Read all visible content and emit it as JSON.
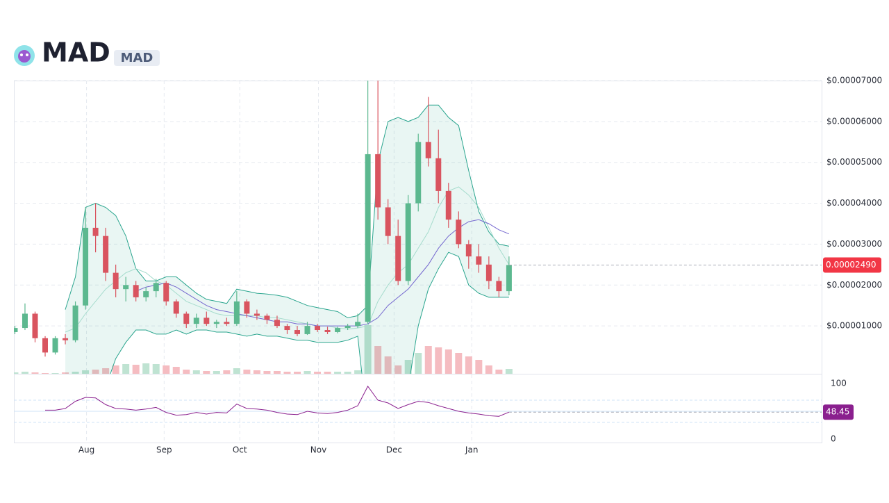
{
  "header": {
    "title": "MAD",
    "symbol": "MAD"
  },
  "chart_data": {
    "type": "candlestick",
    "xlim": [
      -0.1,
      80
    ],
    "xticks": [
      {
        "value": 7.1,
        "label": "Aug"
      },
      {
        "value": 14.8,
        "label": "Sep"
      },
      {
        "value": 22.3,
        "label": "Oct"
      },
      {
        "value": 30.1,
        "label": "Nov"
      },
      {
        "value": 37.6,
        "label": "Dec"
      },
      {
        "value": 45.3,
        "label": "Jan"
      }
    ],
    "ylim": [
      -1.7e-06,
      7e-05
    ],
    "yticks": [
      {
        "value": 1e-05,
        "label": "$0.00001000"
      },
      {
        "value": 2e-05,
        "label": "$0.00002000"
      },
      {
        "value": 3e-05,
        "label": "$0.00003000"
      },
      {
        "value": 4e-05,
        "label": "$0.00004000"
      },
      {
        "value": 5e-05,
        "label": "$0.00005000"
      },
      {
        "value": 6e-05,
        "label": "$0.00006000"
      },
      {
        "value": 7e-05,
        "label": "$0.00007000"
      }
    ],
    "grid": true,
    "open": [
      8.5e-06,
      9.5e-06,
      1.3e-05,
      7e-06,
      3.5e-06,
      7e-06,
      6.5e-06,
      1.5e-05,
      3.4e-05,
      3.2e-05,
      2.3e-05,
      1.9e-05,
      2e-05,
      1.7e-05,
      1.85e-05,
      2.05e-05,
      1.6e-05,
      1.3e-05,
      1.05e-05,
      1.2e-05,
      1.05e-05,
      1.1e-05,
      1.05e-05,
      1.6e-05,
      1.3e-05,
      1.25e-05,
      1.15e-05,
      1e-05,
      9e-06,
      8e-06,
      1e-05,
      9e-06,
      8.5e-06,
      9.5e-06,
      1e-05,
      1.1e-05,
      5.2e-05,
      3.9e-05,
      3.2e-05,
      2.1e-05,
      4e-05,
      5.5e-05,
      5.1e-05,
      4.3e-05,
      3.6e-05,
      3e-05,
      2.7e-05,
      2.5e-05,
      2.1e-05,
      1.85e-05
    ],
    "high": [
      1e-05,
      1.55e-05,
      1.35e-05,
      7.5e-06,
      7.5e-06,
      8e-06,
      1.6e-05,
      3.9e-05,
      4e-05,
      3.4e-05,
      2.5e-05,
      2.2e-05,
      2.1e-05,
      1.95e-05,
      2.15e-05,
      2.1e-05,
      1.65e-05,
      1.35e-05,
      1.3e-05,
      1.35e-05,
      1.15e-05,
      1.2e-05,
      1.85e-05,
      1.65e-05,
      1.4e-05,
      1.3e-05,
      1.25e-05,
      1.05e-05,
      1e-05,
      1.1e-05,
      1.05e-05,
      9.8e-06,
      9.8e-06,
      1.05e-05,
      1.3e-05,
      7e-05,
      7e-05,
      4.1e-05,
      3.6e-05,
      4.2e-05,
      5.7e-05,
      6.6e-05,
      5.8e-05,
      4.5e-05,
      3.8e-05,
      3.1e-05,
      3e-05,
      2.7e-05,
      2.2e-05,
      2.7e-05
    ],
    "low": [
      8e-06,
      9e-06,
      6e-06,
      2.5e-06,
      3e-06,
      5.5e-06,
      6e-06,
      1.4e-05,
      2.8e-05,
      2.1e-05,
      1.7e-05,
      1.6e-05,
      1.6e-05,
      1.6e-05,
      1.7e-05,
      1.5e-05,
      1.2e-05,
      9.5e-06,
      9.5e-06,
      1e-05,
      9.5e-06,
      1e-05,
      1e-05,
      1.2e-05,
      1.15e-05,
      1.05e-05,
      9.5e-06,
      8e-06,
      7.5e-06,
      7.8e-06,
      8.5e-06,
      8e-06,
      8.2e-06,
      9e-06,
      9.5e-06,
      1.05e-05,
      3.6e-05,
      3e-05,
      2e-05,
      2e-05,
      3.8e-05,
      4.9e-05,
      4e-05,
      3.4e-05,
      2.9e-05,
      2.4e-05,
      2.3e-05,
      1.9e-05,
      1.7e-05,
      1.75e-05
    ],
    "close": [
      9.5e-06,
      1.3e-05,
      7e-06,
      3.5e-06,
      7e-06,
      6.5e-06,
      1.5e-05,
      3.4e-05,
      3.2e-05,
      2.3e-05,
      1.9e-05,
      2e-05,
      1.7e-05,
      1.85e-05,
      2.05e-05,
      1.6e-05,
      1.3e-05,
      1.05e-05,
      1.2e-05,
      1.05e-05,
      1.1e-05,
      1.05e-05,
      1.6e-05,
      1.3e-05,
      1.25e-05,
      1.15e-05,
      1e-05,
      9e-06,
      8e-06,
      1e-05,
      9e-06,
      8.5e-06,
      9.5e-06,
      1e-05,
      1.1e-05,
      5.2e-05,
      3.9e-05,
      3.2e-05,
      2.1e-05,
      4e-05,
      5.5e-05,
      5.1e-05,
      4.3e-05,
      3.6e-05,
      3e-05,
      2.7e-05,
      2.5e-05,
      2.1e-05,
      1.85e-05,
      2.49e-05
    ],
    "volume": [
      2,
      3,
      2,
      1,
      1,
      2,
      3,
      5,
      6,
      8,
      12,
      14,
      13,
      15,
      14,
      12,
      10,
      6,
      5,
      4,
      4,
      5,
      8,
      6,
      5,
      4,
      4,
      3,
      3,
      4,
      3,
      3,
      3,
      3,
      5,
      70,
      40,
      25,
      12,
      20,
      30,
      40,
      38,
      35,
      30,
      25,
      20,
      12,
      6,
      7
    ],
    "volume_lim": [
      0,
      100
    ],
    "bb_upper": [
      null,
      null,
      null,
      null,
      null,
      1.4e-05,
      2.2e-05,
      3.9e-05,
      4e-05,
      3.9e-05,
      3.7e-05,
      3.2e-05,
      2.4e-05,
      2.1e-05,
      2.1e-05,
      2.2e-05,
      2.2e-05,
      2e-05,
      1.8e-05,
      1.65e-05,
      1.6e-05,
      1.55e-05,
      1.9e-05,
      1.85e-05,
      1.8e-05,
      1.78e-05,
      1.75e-05,
      1.7e-05,
      1.6e-05,
      1.5e-05,
      1.45e-05,
      1.4e-05,
      1.35e-05,
      1.2e-05,
      1.25e-05,
      1.5e-05,
      5e-05,
      6e-05,
      6.1e-05,
      6e-05,
      6.1e-05,
      6.4e-05,
      6.4e-05,
      6.1e-05,
      5.9e-05,
      4.8e-05,
      3.8e-05,
      3.3e-05,
      3e-05,
      2.95e-05
    ],
    "bb_mid": [
      null,
      null,
      null,
      null,
      null,
      8.5e-06,
      9.5e-06,
      1.3e-05,
      1.6e-05,
      1.9e-05,
      2.1e-05,
      2.3e-05,
      2.4e-05,
      2.3e-05,
      2.1e-05,
      2e-05,
      1.8e-05,
      1.6e-05,
      1.5e-05,
      1.4e-05,
      1.3e-05,
      1.25e-05,
      1.25e-05,
      1.25e-05,
      1.25e-05,
      1.2e-05,
      1.2e-05,
      1.15e-05,
      1.1e-05,
      1.05e-05,
      1e-05,
      1e-05,
      9.5e-06,
      9.2e-06,
      9.5e-06,
      1e-05,
      1.6e-05,
      2e-05,
      2.3e-05,
      2.5e-05,
      2.9e-05,
      3.3e-05,
      3.9e-05,
      4.3e-05,
      4.4e-05,
      4.2e-05,
      3.9e-05,
      3.4e-05,
      2.9e-05,
      2.5e-05
    ],
    "bb_lower": [
      null,
      null,
      null,
      null,
      null,
      -6e-06,
      -1e-05,
      -1.5e-05,
      -1e-05,
      -5e-06,
      2e-06,
      6e-06,
      9e-06,
      9e-06,
      8e-06,
      8e-06,
      9e-06,
      8e-06,
      9e-06,
      9e-06,
      8.5e-06,
      8.5e-06,
      8e-06,
      7.5e-06,
      8e-06,
      7.5e-06,
      7.5e-06,
      7e-06,
      6.5e-06,
      6.5e-06,
      6e-06,
      6e-06,
      6e-06,
      6.5e-06,
      7.5e-06,
      -1.5e-05,
      -3e-05,
      -2.5e-05,
      -1.5e-05,
      -5e-06,
      1e-05,
      1.9e-05,
      2.4e-05,
      2.8e-05,
      2.7e-05,
      2e-05,
      1.8e-05,
      1.7e-05,
      1.7e-05,
      1.7e-05
    ],
    "ma": [
      null,
      null,
      null,
      null,
      null,
      null,
      null,
      null,
      null,
      null,
      null,
      null,
      1.85e-05,
      1.95e-05,
      2e-05,
      2.05e-05,
      1.95e-05,
      1.8e-05,
      1.65e-05,
      1.5e-05,
      1.4e-05,
      1.35e-05,
      1.3e-05,
      1.25e-05,
      1.2e-05,
      1.15e-05,
      1.1e-05,
      1.1e-05,
      1.05e-05,
      1.05e-05,
      1e-05,
      1e-05,
      1e-05,
      1e-05,
      1e-05,
      1.05e-05,
      1.2e-05,
      1.5e-05,
      1.7e-05,
      1.9e-05,
      2.2e-05,
      2.5e-05,
      2.9e-05,
      3.2e-05,
      3.4e-05,
      3.55e-05,
      3.6e-05,
      3.5e-05,
      3.35e-05,
      3.25e-05
    ],
    "last_price": {
      "value": 2.49e-05,
      "label": "0.00002490"
    },
    "rsi": [
      null,
      null,
      null,
      52,
      52,
      55,
      68,
      75,
      74,
      62,
      55,
      54,
      52,
      54,
      57,
      48,
      43,
      44,
      48,
      45,
      48,
      47,
      63,
      55,
      54,
      52,
      48,
      45,
      44,
      50,
      47,
      46,
      48,
      52,
      60,
      95,
      70,
      65,
      55,
      62,
      68,
      66,
      60,
      55,
      50,
      47,
      45,
      42,
      41,
      48.45
    ],
    "rsi_ylim": [
      0,
      100
    ],
    "rsi_yticks": [
      0,
      100
    ],
    "rsi_bands": [
      30,
      50,
      70
    ],
    "colors": {
      "up": "#5cb88f",
      "down": "#d9545f",
      "volume_up": "#bfe3d2",
      "volume_down": "#f5bcc1",
      "band": "#2aa58e",
      "band_fill": "rgba(42,165,142,0.10)",
      "mid": "#a6dccd",
      "ma": "#7467cf",
      "rsi": "#8a1f8e",
      "last": "#f23645",
      "rsi_badge": "#8a1f8e"
    }
  }
}
